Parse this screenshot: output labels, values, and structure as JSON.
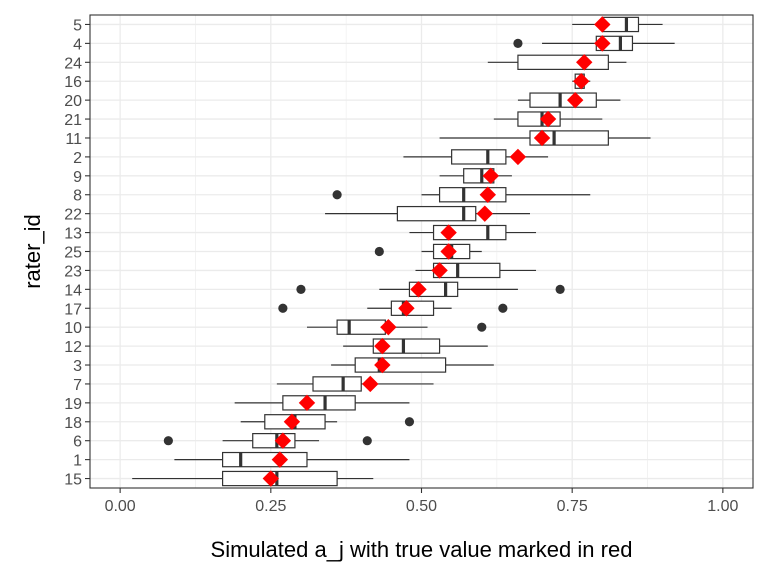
{
  "chart_data": {
    "type": "boxplot",
    "orientation": "horizontal",
    "xlabel": "Simulated a_j with true value marked in red",
    "ylabel": "rater_id",
    "xlim": [
      -0.05,
      1.05
    ],
    "x_ticks": [
      0.0,
      0.25,
      0.5,
      0.75,
      1.0
    ],
    "x_tick_labels": [
      "0.00",
      "0.25",
      "0.50",
      "0.75",
      "1.00"
    ],
    "grid": true,
    "true_value_color": "#ff0000",
    "box_color": "#333333",
    "outlier_color": "#333333",
    "categories": [
      "5",
      "4",
      "24",
      "16",
      "20",
      "21",
      "11",
      "2",
      "9",
      "8",
      "22",
      "13",
      "25",
      "23",
      "14",
      "17",
      "10",
      "12",
      "3",
      "7",
      "19",
      "18",
      "6",
      "1",
      "15"
    ],
    "boxes": [
      {
        "id": "5",
        "whisker_low": 0.75,
        "q1": 0.8,
        "median": 0.84,
        "q3": 0.86,
        "whisker_high": 0.9,
        "outliers": [],
        "true_value": 0.8
      },
      {
        "id": "4",
        "whisker_low": 0.7,
        "q1": 0.79,
        "median": 0.83,
        "q3": 0.85,
        "whisker_high": 0.92,
        "outliers": [
          0.66
        ],
        "true_value": 0.8
      },
      {
        "id": "24",
        "whisker_low": 0.61,
        "q1": 0.66,
        "median": 0.77,
        "q3": 0.81,
        "whisker_high": 0.84,
        "outliers": [],
        "true_value": 0.77
      },
      {
        "id": "16",
        "whisker_low": 0.75,
        "q1": 0.755,
        "median": 0.765,
        "q3": 0.77,
        "whisker_high": 0.78,
        "outliers": [],
        "true_value": 0.765
      },
      {
        "id": "20",
        "whisker_low": 0.66,
        "q1": 0.68,
        "median": 0.73,
        "q3": 0.79,
        "whisker_high": 0.83,
        "outliers": [],
        "true_value": 0.755
      },
      {
        "id": "21",
        "whisker_low": 0.62,
        "q1": 0.66,
        "median": 0.7,
        "q3": 0.73,
        "whisker_high": 0.8,
        "outliers": [],
        "true_value": 0.71
      },
      {
        "id": "11",
        "whisker_low": 0.53,
        "q1": 0.68,
        "median": 0.72,
        "q3": 0.81,
        "whisker_high": 0.88,
        "outliers": [],
        "true_value": 0.7
      },
      {
        "id": "2",
        "whisker_low": 0.47,
        "q1": 0.55,
        "median": 0.61,
        "q3": 0.64,
        "whisker_high": 0.71,
        "outliers": [],
        "true_value": 0.66
      },
      {
        "id": "9",
        "whisker_low": 0.53,
        "q1": 0.57,
        "median": 0.6,
        "q3": 0.62,
        "whisker_high": 0.65,
        "outliers": [],
        "true_value": 0.615
      },
      {
        "id": "8",
        "whisker_low": 0.5,
        "q1": 0.53,
        "median": 0.57,
        "q3": 0.64,
        "whisker_high": 0.78,
        "outliers": [
          0.36
        ],
        "true_value": 0.61
      },
      {
        "id": "22",
        "whisker_low": 0.34,
        "q1": 0.46,
        "median": 0.57,
        "q3": 0.59,
        "whisker_high": 0.68,
        "outliers": [],
        "true_value": 0.605
      },
      {
        "id": "13",
        "whisker_low": 0.48,
        "q1": 0.52,
        "median": 0.61,
        "q3": 0.64,
        "whisker_high": 0.69,
        "outliers": [],
        "true_value": 0.545
      },
      {
        "id": "25",
        "whisker_low": 0.5,
        "q1": 0.52,
        "median": 0.55,
        "q3": 0.58,
        "whisker_high": 0.6,
        "outliers": [
          0.43
        ],
        "true_value": 0.545
      },
      {
        "id": "23",
        "whisker_low": 0.49,
        "q1": 0.52,
        "median": 0.56,
        "q3": 0.63,
        "whisker_high": 0.69,
        "outliers": [],
        "true_value": 0.53
      },
      {
        "id": "14",
        "whisker_low": 0.43,
        "q1": 0.48,
        "median": 0.54,
        "q3": 0.56,
        "whisker_high": 0.66,
        "outliers": [
          0.3,
          0.73
        ],
        "true_value": 0.495
      },
      {
        "id": "17",
        "whisker_low": 0.41,
        "q1": 0.45,
        "median": 0.47,
        "q3": 0.52,
        "whisker_high": 0.55,
        "outliers": [
          0.27,
          0.635
        ],
        "true_value": 0.475
      },
      {
        "id": "10",
        "whisker_low": 0.31,
        "q1": 0.36,
        "median": 0.38,
        "q3": 0.44,
        "whisker_high": 0.51,
        "outliers": [
          0.6
        ],
        "true_value": 0.445
      },
      {
        "id": "12",
        "whisker_low": 0.37,
        "q1": 0.42,
        "median": 0.47,
        "q3": 0.53,
        "whisker_high": 0.61,
        "outliers": [],
        "true_value": 0.435
      },
      {
        "id": "3",
        "whisker_low": 0.35,
        "q1": 0.39,
        "median": 0.43,
        "q3": 0.54,
        "whisker_high": 0.62,
        "outliers": [],
        "true_value": 0.435
      },
      {
        "id": "7",
        "whisker_low": 0.26,
        "q1": 0.32,
        "median": 0.37,
        "q3": 0.4,
        "whisker_high": 0.52,
        "outliers": [],
        "true_value": 0.415
      },
      {
        "id": "19",
        "whisker_low": 0.19,
        "q1": 0.27,
        "median": 0.34,
        "q3": 0.39,
        "whisker_high": 0.48,
        "outliers": [],
        "true_value": 0.31
      },
      {
        "id": "18",
        "whisker_low": 0.2,
        "q1": 0.24,
        "median": 0.29,
        "q3": 0.34,
        "whisker_high": 0.36,
        "outliers": [
          0.48
        ],
        "true_value": 0.285
      },
      {
        "id": "6",
        "whisker_low": 0.17,
        "q1": 0.22,
        "median": 0.26,
        "q3": 0.29,
        "whisker_high": 0.33,
        "outliers": [
          0.08,
          0.41
        ],
        "true_value": 0.27
      },
      {
        "id": "1",
        "whisker_low": 0.09,
        "q1": 0.17,
        "median": 0.2,
        "q3": 0.31,
        "whisker_high": 0.48,
        "outliers": [],
        "true_value": 0.265
      },
      {
        "id": "15",
        "whisker_low": 0.02,
        "q1": 0.17,
        "median": 0.26,
        "q3": 0.36,
        "whisker_high": 0.42,
        "outliers": [],
        "true_value": 0.25
      }
    ]
  }
}
